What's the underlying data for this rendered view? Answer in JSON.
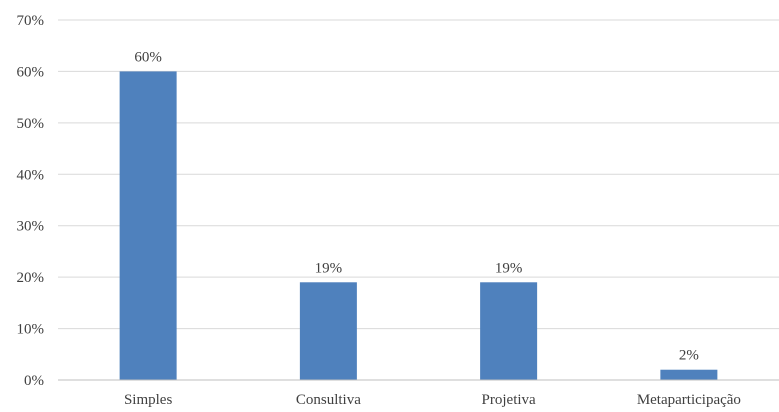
{
  "chart_data": {
    "type": "bar",
    "categories": [
      "Simples",
      "Consultiva",
      "Projetiva",
      "Metaparticipação"
    ],
    "values": [
      60,
      19,
      19,
      2
    ],
    "value_labels": [
      "60%",
      "19%",
      "19%",
      "2%"
    ],
    "y_ticks": [
      0,
      10,
      20,
      30,
      40,
      50,
      60,
      70
    ],
    "y_tick_labels": [
      "0%",
      "10%",
      "20%",
      "30%",
      "40%",
      "50%",
      "60%",
      "70%"
    ],
    "ylim": [
      0,
      70
    ],
    "grid": true,
    "bar_color": "#4f81bd"
  }
}
